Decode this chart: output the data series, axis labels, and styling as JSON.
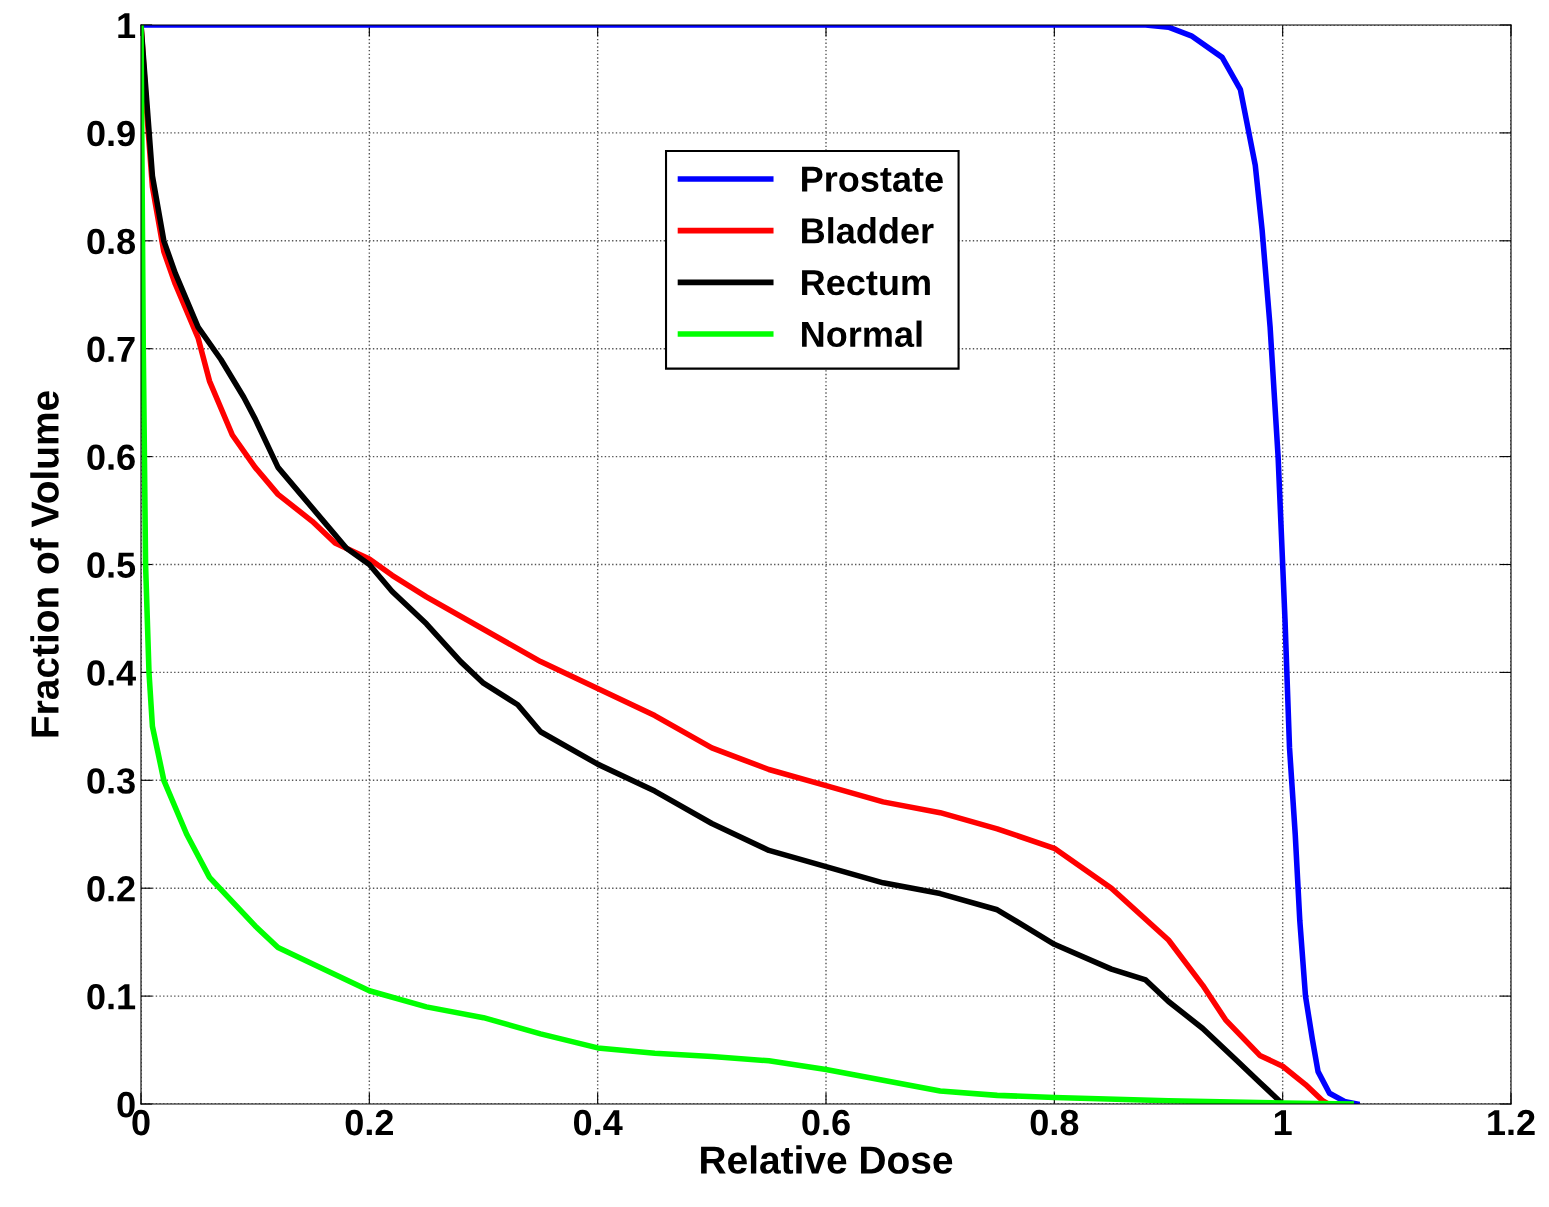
{
  "chart_data": {
    "type": "line",
    "xlabel": "Relative Dose",
    "ylabel": "Fraction of Volume",
    "xlim": [
      0,
      1.2
    ],
    "xticks": [
      0,
      0.2,
      0.4,
      0.6,
      0.8,
      1,
      1.2
    ],
    "ylim": [
      0,
      1
    ],
    "yticks": [
      0,
      0.1,
      0.2,
      0.3,
      0.4,
      0.5,
      0.6,
      0.7,
      0.8,
      0.9,
      1
    ],
    "grid": true,
    "legend": "top",
    "line_style": "solid",
    "marker": "none",
    "series": [
      {
        "name": "Prostate",
        "color": "#0000ff",
        "x": [
          0,
          0.88,
          0.9,
          0.92,
          0.947,
          0.963,
          0.976,
          0.982,
          0.989,
          0.996,
          1.002,
          1.006,
          1.011,
          1.015,
          1.02,
          1.026,
          1.031,
          1.041,
          1.055,
          1.065
        ],
        "values": [
          1,
          1,
          0.998,
          0.99,
          0.97,
          0.94,
          0.87,
          0.81,
          0.72,
          0.6,
          0.45,
          0.33,
          0.25,
          0.17,
          0.1,
          0.06,
          0.03,
          0.01,
          0.002,
          0
        ]
      },
      {
        "name": "Bladder",
        "color": "#ff0000",
        "x": [
          0,
          0.005,
          0.01,
          0.02,
          0.03,
          0.05,
          0.06,
          0.08,
          0.1,
          0.12,
          0.15,
          0.17,
          0.2,
          0.22,
          0.25,
          0.3,
          0.35,
          0.4,
          0.45,
          0.5,
          0.55,
          0.6,
          0.65,
          0.7,
          0.75,
          0.8,
          0.85,
          0.9,
          0.93,
          0.95,
          0.98,
          1.0,
          1.02,
          1.035,
          1.04
        ],
        "values": [
          1,
          0.92,
          0.85,
          0.79,
          0.76,
          0.71,
          0.67,
          0.62,
          0.59,
          0.565,
          0.54,
          0.52,
          0.505,
          0.49,
          0.47,
          0.44,
          0.41,
          0.385,
          0.36,
          0.33,
          0.31,
          0.295,
          0.28,
          0.27,
          0.255,
          0.237,
          0.2,
          0.152,
          0.11,
          0.078,
          0.045,
          0.035,
          0.018,
          0.003,
          0
        ]
      },
      {
        "name": "Rectum",
        "color": "#000000",
        "x": [
          0,
          0.005,
          0.01,
          0.02,
          0.03,
          0.05,
          0.07,
          0.09,
          0.1,
          0.12,
          0.14,
          0.16,
          0.18,
          0.2,
          0.22,
          0.25,
          0.28,
          0.3,
          0.33,
          0.35,
          0.4,
          0.45,
          0.5,
          0.55,
          0.6,
          0.65,
          0.7,
          0.75,
          0.8,
          0.85,
          0.88,
          0.9,
          0.93,
          0.96,
          0.98,
          1.0
        ],
        "values": [
          1,
          0.93,
          0.86,
          0.8,
          0.77,
          0.72,
          0.69,
          0.655,
          0.635,
          0.59,
          0.565,
          0.54,
          0.515,
          0.5,
          0.475,
          0.445,
          0.41,
          0.39,
          0.37,
          0.345,
          0.315,
          0.29,
          0.26,
          0.235,
          0.22,
          0.205,
          0.195,
          0.18,
          0.148,
          0.125,
          0.115,
          0.095,
          0.07,
          0.04,
          0.02,
          0
        ]
      },
      {
        "name": "Normal",
        "color": "#00ff00",
        "x": [
          0,
          0.002,
          0.004,
          0.007,
          0.01,
          0.02,
          0.04,
          0.06,
          0.1,
          0.12,
          0.15,
          0.2,
          0.25,
          0.3,
          0.35,
          0.4,
          0.45,
          0.5,
          0.55,
          0.6,
          0.65,
          0.7,
          0.75,
          0.8,
          0.9,
          1.0,
          1.06
        ],
        "values": [
          1,
          0.7,
          0.5,
          0.4,
          0.35,
          0.3,
          0.25,
          0.21,
          0.165,
          0.145,
          0.13,
          0.105,
          0.09,
          0.08,
          0.065,
          0.052,
          0.047,
          0.044,
          0.04,
          0.032,
          0.022,
          0.012,
          0.008,
          0.006,
          0.003,
          0.001,
          0
        ]
      }
    ]
  }
}
